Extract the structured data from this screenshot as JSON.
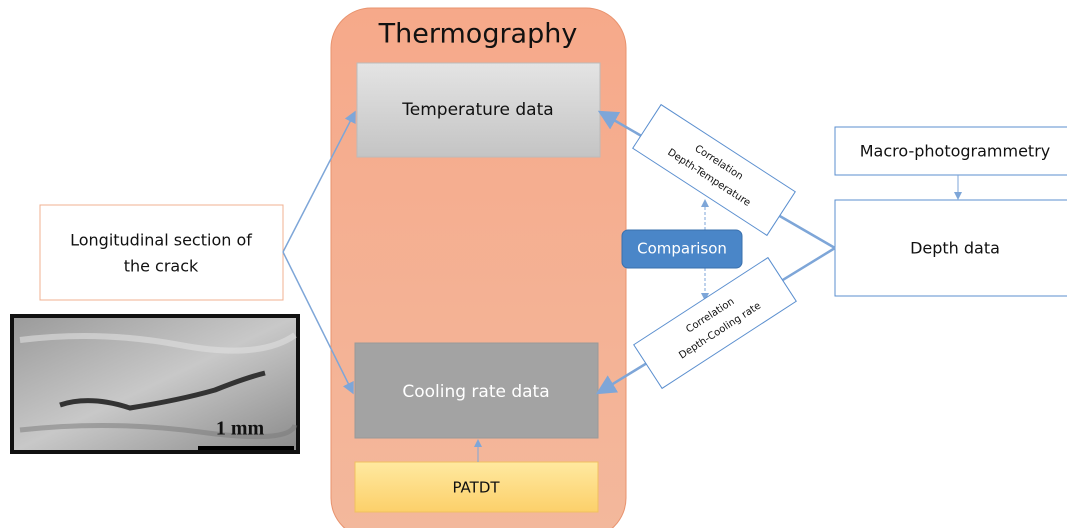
{
  "title": "Thermography",
  "nodes": [
    {
      "id": "temperature",
      "label": "Temperature data"
    },
    {
      "id": "cooling",
      "label": "Cooling rate data"
    },
    {
      "id": "patdt",
      "label": "PATDT"
    },
    {
      "id": "section",
      "lines": [
        "Longitudinal section of",
        "the crack"
      ]
    },
    {
      "id": "macro",
      "label": "Macro-photogrammetry"
    },
    {
      "id": "depth",
      "label": "Depth data"
    },
    {
      "id": "comparison",
      "label": "Comparison"
    },
    {
      "id": "corr-temp",
      "lines": [
        "Correlation",
        "Depth-Temperature"
      ]
    },
    {
      "id": "corr-cool",
      "lines": [
        "Correlation",
        "Depth-Cooling rate"
      ]
    }
  ],
  "image": {
    "scale_label": "1 mm"
  }
}
